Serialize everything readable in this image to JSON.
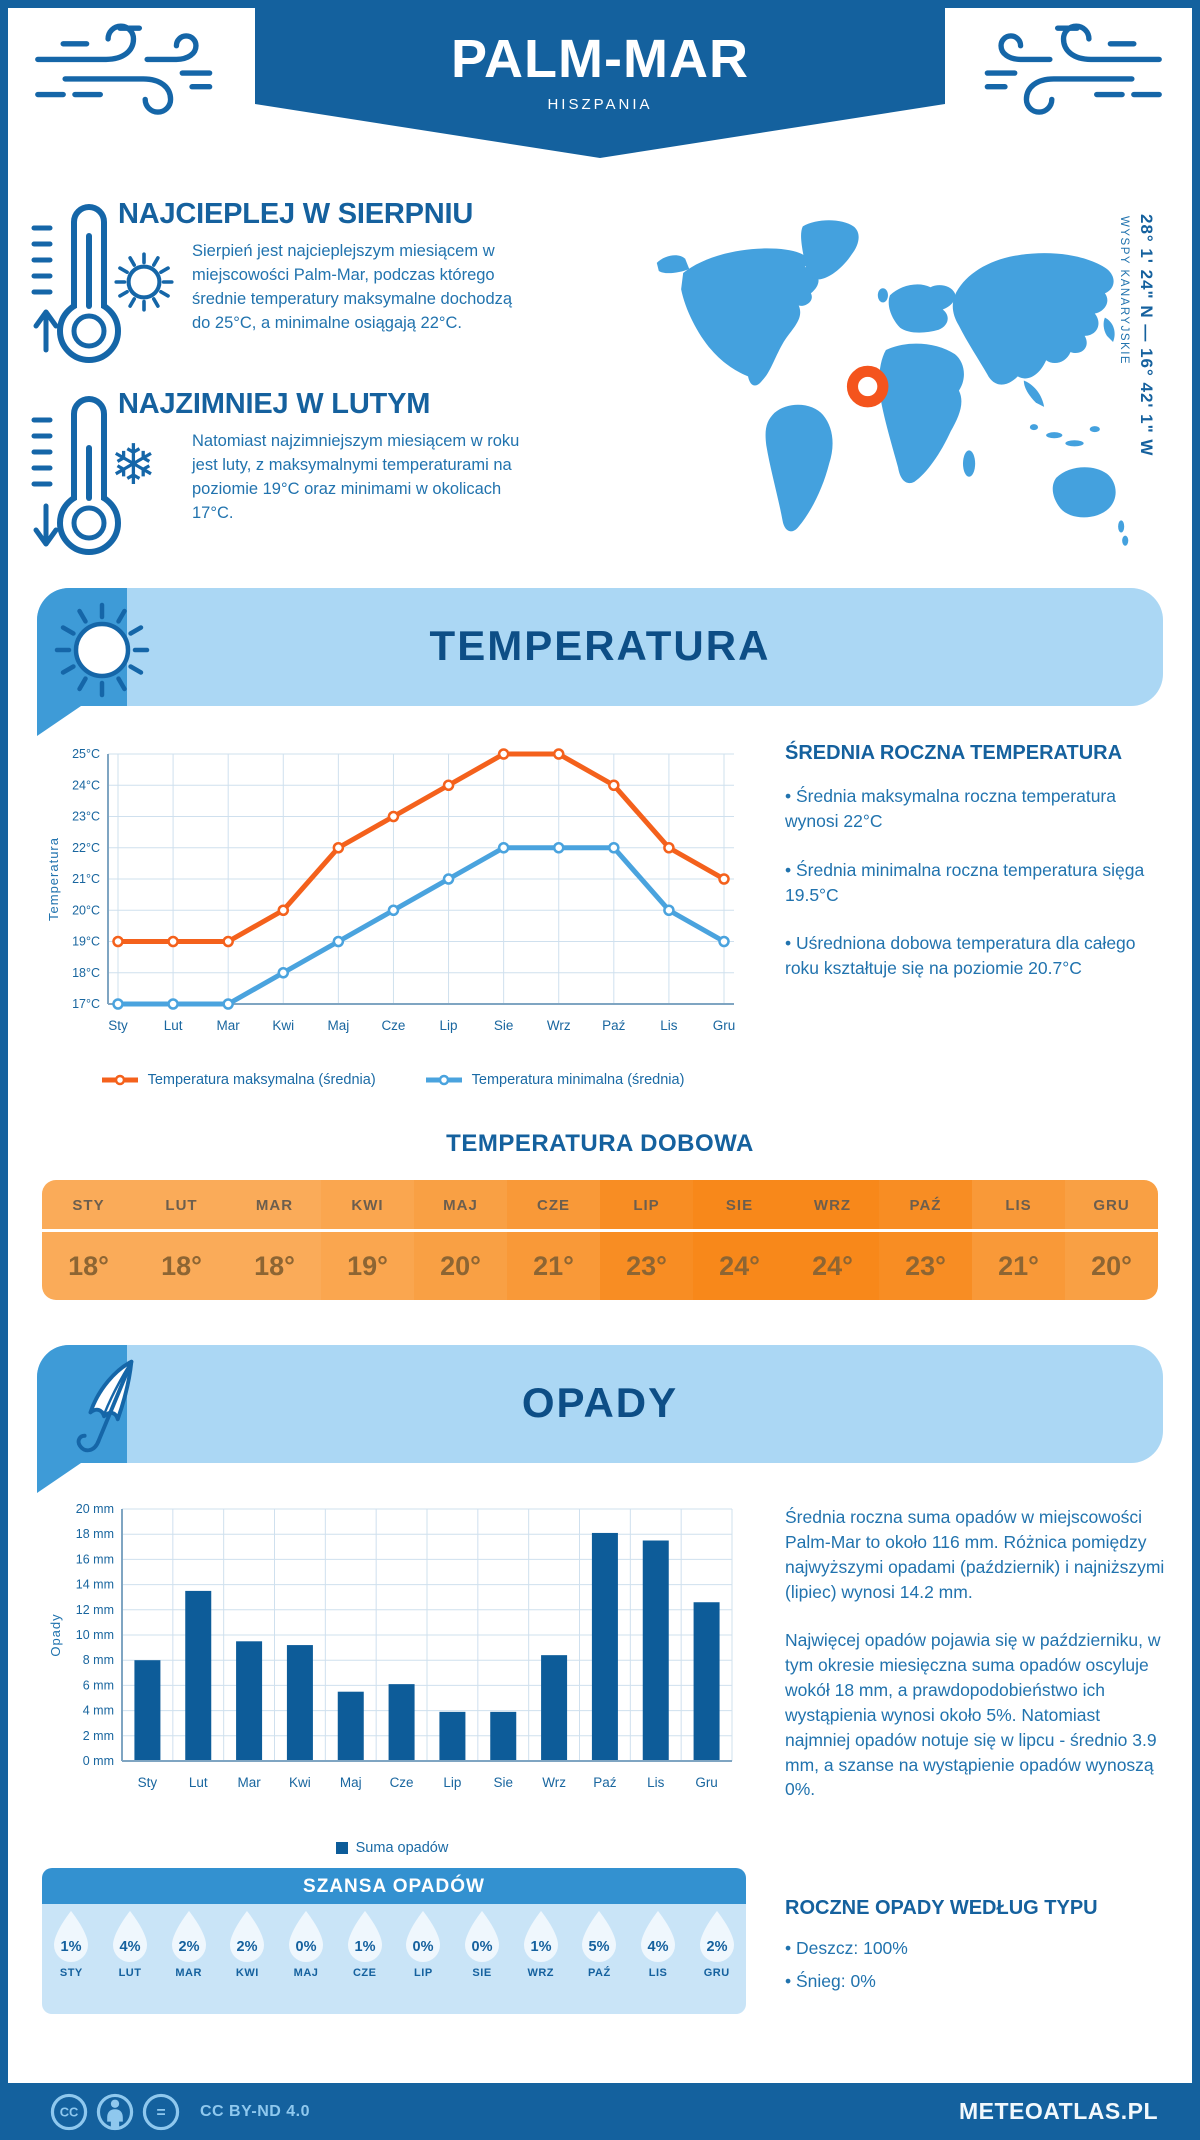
{
  "header": {
    "title": "PALM-MAR",
    "subtitle": "HISZPANIA"
  },
  "warmest": {
    "title": "NAJCIEPLEJ W SIERPNIU",
    "text": "Sierpień jest najcieplejszym miesiącem w miejscowości Palm-Mar, podczas którego średnie temperatury maksymalne dochodzą do 25°C, a minimalne osiągają 22°C."
  },
  "coldest": {
    "title": "NAJZIMNIEJ W LUTYM",
    "text": "Natomiast najzimniejszym miesiącem w roku jest luty, z maksymalnymi temperaturami na poziomie 19°C oraz minimami w okolicach 17°C."
  },
  "map": {
    "coordinates": "28° 1' 24\" N — 16° 42' 1\" W",
    "region": "WYSPY KANARYJSKIE",
    "land_color": "#44A1DE",
    "marker_color": "#F4541D"
  },
  "temp_section": {
    "title": "TEMPERATURA"
  },
  "rain_section": {
    "title": "OPADY"
  },
  "annual_temp": {
    "title": "ŚREDNIA ROCZNA TEMPERATURA",
    "bullets": [
      "• Średnia maksymalna roczna temperatura wynosi 22°C",
      "• Średnia minimalna roczna temperatura sięga 19.5°C",
      "• Uśredniona dobowa temperatura dla całego roku kształtuje się na poziomie 20.7°C"
    ]
  },
  "daily": {
    "title": "TEMPERATURA DOBOWA",
    "months": [
      "STY",
      "LUT",
      "MAR",
      "KWI",
      "MAJ",
      "CZE",
      "LIP",
      "SIE",
      "WRZ",
      "PAŹ",
      "LIS",
      "GRU"
    ],
    "values": [
      "18°",
      "18°",
      "18°",
      "19°",
      "20°",
      "21°",
      "23°",
      "24°",
      "24°",
      "23°",
      "21°",
      "20°"
    ],
    "colors": [
      "#FAAB59",
      "#FAAB59",
      "#FAAB59",
      "#FAA64F",
      "#F9A044",
      "#F99938",
      "#F88D23",
      "#F8881A",
      "#F8881A",
      "#F88D23",
      "#F99938",
      "#F9A044"
    ]
  },
  "precip_text": {
    "p1": "Średnia roczna suma opadów w miejscowości Palm-Mar to około 116 mm. Różnica pomiędzy najwyższymi opadami (październik) i najniższymi (lipiec) wynosi 14.2 mm.",
    "p2": "Najwięcej opadów pojawia się w październiku, w tym okresie miesięczna suma opadów oscyluje wokół 18 mm, a prawdopodobieństwo ich wystąpienia wynosi około 5%. Natomiast najmniej opadów notuje się w lipcu - średnio 3.9 mm, a szanse na wystąpienie opadów wynoszą 0%."
  },
  "precip_type": {
    "title": "ROCZNE OPADY WEDŁUG TYPU",
    "bullets": [
      "• Deszcz: 100%",
      "• Śnieg: 0%"
    ]
  },
  "chance": {
    "title": "SZANSA OPADÓW",
    "months": [
      "STY",
      "LUT",
      "MAR",
      "KWI",
      "MAJ",
      "CZE",
      "LIP",
      "SIE",
      "WRZ",
      "PAŹ",
      "LIS",
      "GRU"
    ],
    "values": [
      "1%",
      "4%",
      "2%",
      "2%",
      "0%",
      "1%",
      "0%",
      "0%",
      "1%",
      "5%",
      "4%",
      "2%"
    ]
  },
  "footer": {
    "license": "CC BY-ND 4.0",
    "site": "METEOATLAS.PL"
  },
  "palette": {
    "dark_blue": "#14619E",
    "heading_blue": "#15619E",
    "body_blue": "#2173AE",
    "banner_light": "#ABD7F4",
    "banner_wedge": "#3E9BD7",
    "chance_header": "#3391D0",
    "chance_body": "#C9E4F7",
    "bar_blue": "#0D5C99",
    "line_orange": "#F4611C",
    "line_blue": "#4AA3DE",
    "footer_icons": "#8FC8EE"
  },
  "chart_data": [
    {
      "type": "line",
      "x": [
        "Sty",
        "Lut",
        "Mar",
        "Kwi",
        "Maj",
        "Cze",
        "Lip",
        "Sie",
        "Wrz",
        "Paź",
        "Lis",
        "Gru"
      ],
      "ylabel": "Temperatura",
      "ylim": [
        17,
        25
      ],
      "ytick_suffix": "°C",
      "grid": true,
      "legend_position": "bottom",
      "series": [
        {
          "name": "Temperatura maksymalna (średnia)",
          "color": "#F4611C",
          "values": [
            19,
            19,
            19,
            20,
            22,
            23,
            24,
            25,
            25,
            24,
            22,
            21
          ]
        },
        {
          "name": "Temperatura minimalna (średnia)",
          "color": "#4AA3DE",
          "values": [
            17,
            17,
            17,
            18,
            19,
            20,
            21,
            22,
            22,
            22,
            20,
            19
          ]
        }
      ]
    },
    {
      "type": "bar",
      "categories": [
        "Sty",
        "Lut",
        "Mar",
        "Kwi",
        "Maj",
        "Cze",
        "Lip",
        "Sie",
        "Wrz",
        "Paź",
        "Lis",
        "Gru"
      ],
      "values": [
        8.0,
        13.5,
        9.5,
        9.2,
        5.5,
        6.1,
        3.9,
        3.9,
        8.4,
        18.1,
        17.5,
        12.6
      ],
      "ylabel": "Opady",
      "ylim": [
        0,
        20
      ],
      "ytick_step": 2,
      "ytick_suffix": " mm",
      "grid": true,
      "bar_color": "#0D5C99",
      "legend": "Suma opadów",
      "legend_position": "bottom"
    }
  ]
}
